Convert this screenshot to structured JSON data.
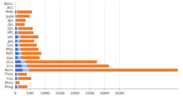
{
  "chart_data": {
    "type": "bar",
    "orientation": "horizontal",
    "stacked": true,
    "grid": true,
    "categories": [
      "Apoc.",
      "Act.",
      "Heb.",
      "Jude",
      "3Jn.",
      "2Jn.",
      "1Jn.",
      "2Pt.",
      "1Pt.",
      "Jas.",
      "Col.",
      "Php.",
      "Eph.",
      "Gal.",
      "2Co.",
      "1Co.",
      "Rom.",
      "Thes.",
      "Tim.",
      "Phm.",
      "Prog."
    ],
    "series": [
      {
        "color": "#4472c4",
        "values": [
          5,
          5,
          30,
          20,
          10,
          10,
          60,
          50,
          100,
          70,
          90,
          100,
          120,
          100,
          200,
          230,
          260,
          50,
          60,
          15,
          60
        ]
      },
      {
        "color": "#9dc3e6",
        "values": [
          0,
          0,
          30,
          20,
          10,
          10,
          50,
          40,
          80,
          60,
          70,
          80,
          90,
          80,
          150,
          170,
          200,
          40,
          50,
          10,
          50
        ]
      },
      {
        "color": "#ed7d31",
        "values": [
          0,
          0,
          500,
          450,
          330,
          300,
          480,
          520,
          600,
          510,
          560,
          600,
          670,
          640,
          2400,
          2750,
          5000,
          300,
          430,
          120,
          300
        ]
      }
    ],
    "xlim": [
      0,
      5500
    ],
    "xticks": [
      0,
      500,
      1000,
      1500,
      2000,
      2500,
      3000,
      3500
    ]
  }
}
